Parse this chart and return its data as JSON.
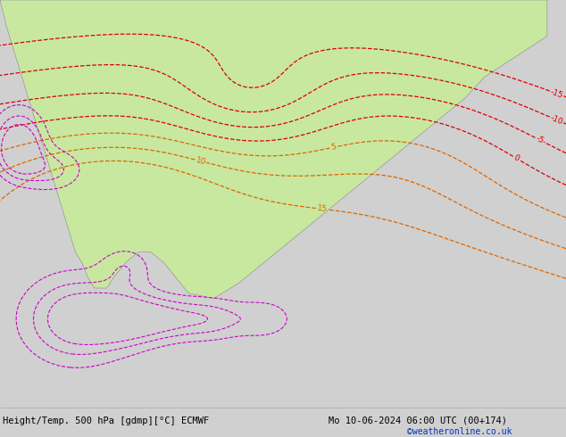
{
  "title_left": "Height/Temp. 500 hPa [gdmp][°C] ECMWF",
  "title_right": "Mo 10-06-2024 06:00 UTC (00+174)",
  "credit": "©weatheronline.co.uk",
  "bg_color": "#d0d0d0",
  "sea_color": "#d8d8d8",
  "land_green_color": "#c8e8a0",
  "land_gray_color": "#c0c0c0",
  "border_color": "#888888",
  "z500_color": "#000000",
  "temp_neg_color": "#dd0000",
  "temp_pos_color": "#dd6600",
  "rain_color": "#cc00cc",
  "credit_color": "#0033cc",
  "figwidth": 6.34,
  "figheight": 4.9,
  "dpi": 100,
  "lonmin": 88,
  "lonmax": 178,
  "latmin": -22,
  "latmax": 57,
  "title_fontsize": 7.5,
  "label_fontsize": 6.5
}
